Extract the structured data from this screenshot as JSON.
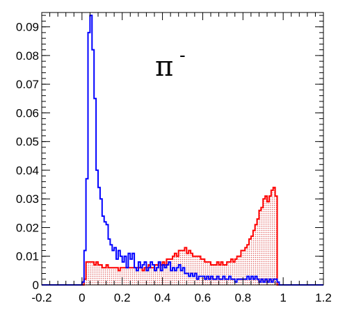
{
  "chart_data": {
    "type": "histogram",
    "title": "π",
    "title_superscript": "-",
    "xlabel": "",
    "ylabel": "",
    "xlim": [
      -0.2,
      1.2
    ],
    "ylim": [
      0,
      0.095
    ],
    "x_ticks": [
      -0.2,
      0,
      0.2,
      0.4,
      0.6,
      0.8,
      1,
      1.2
    ],
    "x_tick_labels": [
      "-0.2",
      "0",
      "0.2",
      "0.4",
      "0.6",
      "0.8",
      "1",
      "1.2"
    ],
    "y_ticks": [
      0,
      0.01,
      0.02,
      0.03,
      0.04,
      0.05,
      0.06,
      0.07,
      0.08,
      0.09
    ],
    "y_tick_labels": [
      "0",
      "0.01",
      "0.02",
      "0.03",
      "0.04",
      "0.05",
      "0.06",
      "0.07",
      "0.08",
      "0.09"
    ],
    "grid": false,
    "legend": "none",
    "bin_width": 0.01,
    "series": [
      {
        "color": "#0000ff",
        "fill": "none",
        "points": [
          [
            0.0,
            0.001
          ],
          [
            0.01,
            0.012
          ],
          [
            0.02,
            0.037
          ],
          [
            0.03,
            0.088
          ],
          [
            0.04,
            0.094
          ],
          [
            0.05,
            0.082
          ],
          [
            0.06,
            0.065
          ],
          [
            0.07,
            0.04
          ],
          [
            0.08,
            0.034
          ],
          [
            0.09,
            0.03
          ],
          [
            0.1,
            0.024
          ],
          [
            0.11,
            0.022
          ],
          [
            0.12,
            0.021
          ],
          [
            0.13,
            0.016
          ],
          [
            0.14,
            0.014
          ],
          [
            0.15,
            0.012
          ],
          [
            0.16,
            0.013
          ],
          [
            0.17,
            0.009
          ],
          [
            0.18,
            0.012
          ],
          [
            0.19,
            0.01
          ],
          [
            0.2,
            0.008
          ],
          [
            0.21,
            0.01
          ],
          [
            0.22,
            0.006
          ],
          [
            0.23,
            0.011
          ],
          [
            0.24,
            0.009
          ],
          [
            0.25,
            0.011
          ],
          [
            0.26,
            0.006
          ],
          [
            0.27,
            0.005
          ],
          [
            0.28,
            0.008
          ],
          [
            0.29,
            0.006
          ],
          [
            0.3,
            0.007
          ],
          [
            0.31,
            0.008
          ],
          [
            0.32,
            0.005
          ],
          [
            0.33,
            0.006
          ],
          [
            0.34,
            0.008
          ],
          [
            0.35,
            0.007
          ],
          [
            0.36,
            0.005
          ],
          [
            0.37,
            0.006
          ],
          [
            0.38,
            0.008
          ],
          [
            0.39,
            0.005
          ],
          [
            0.4,
            0.007
          ],
          [
            0.41,
            0.006
          ],
          [
            0.42,
            0.007
          ],
          [
            0.43,
            0.008
          ],
          [
            0.44,
            0.005
          ],
          [
            0.45,
            0.006
          ],
          [
            0.46,
            0.005
          ],
          [
            0.47,
            0.006
          ],
          [
            0.48,
            0.007
          ],
          [
            0.49,
            0.005
          ],
          [
            0.5,
            0.006
          ],
          [
            0.51,
            0.004
          ],
          [
            0.52,
            0.004
          ],
          [
            0.53,
            0.003
          ],
          [
            0.54,
            0.004
          ],
          [
            0.55,
            0.003
          ],
          [
            0.56,
            0.004
          ],
          [
            0.57,
            0.002
          ],
          [
            0.58,
            0.003
          ],
          [
            0.59,
            0.003
          ],
          [
            0.6,
            0.003
          ],
          [
            0.61,
            0.002
          ],
          [
            0.62,
            0.003
          ],
          [
            0.63,
            0.002
          ],
          [
            0.64,
            0.003
          ],
          [
            0.65,
            0.002
          ],
          [
            0.66,
            0.002
          ],
          [
            0.67,
            0.003
          ],
          [
            0.68,
            0.002
          ],
          [
            0.69,
            0.002
          ],
          [
            0.7,
            0.003
          ],
          [
            0.71,
            0.002
          ],
          [
            0.72,
            0.002
          ],
          [
            0.73,
            0.003
          ],
          [
            0.74,
            0.002
          ],
          [
            0.75,
            0.002
          ],
          [
            0.76,
            0.001
          ],
          [
            0.77,
            0.002
          ],
          [
            0.78,
            0.002
          ],
          [
            0.79,
            0.002
          ],
          [
            0.8,
            0.002
          ],
          [
            0.81,
            0.002
          ],
          [
            0.82,
            0.003
          ],
          [
            0.83,
            0.002
          ],
          [
            0.84,
            0.003
          ],
          [
            0.85,
            0.002
          ],
          [
            0.86,
            0.003
          ],
          [
            0.87,
            0.002
          ],
          [
            0.88,
            0.001
          ],
          [
            0.89,
            0.002
          ],
          [
            0.9,
            0.001
          ],
          [
            0.91,
            0.002
          ],
          [
            0.92,
            0.001
          ],
          [
            0.93,
            0.002
          ],
          [
            0.94,
            0.001
          ],
          [
            0.95,
            0.002
          ],
          [
            0.96,
            0.002
          ],
          [
            0.97,
            0.001
          ],
          [
            0.98,
            0.0
          ]
        ]
      },
      {
        "color": "#ff0000",
        "fill": "#f8d8d8",
        "points": [
          [
            0.0,
            0.0
          ],
          [
            0.01,
            0.002
          ],
          [
            0.02,
            0.008
          ],
          [
            0.03,
            0.008
          ],
          [
            0.04,
            0.008
          ],
          [
            0.05,
            0.008
          ],
          [
            0.06,
            0.007
          ],
          [
            0.07,
            0.008
          ],
          [
            0.08,
            0.007
          ],
          [
            0.09,
            0.007
          ],
          [
            0.1,
            0.006
          ],
          [
            0.11,
            0.006
          ],
          [
            0.12,
            0.007
          ],
          [
            0.13,
            0.006
          ],
          [
            0.14,
            0.006
          ],
          [
            0.15,
            0.006
          ],
          [
            0.16,
            0.006
          ],
          [
            0.17,
            0.006
          ],
          [
            0.18,
            0.005
          ],
          [
            0.19,
            0.006
          ],
          [
            0.2,
            0.006
          ],
          [
            0.21,
            0.006
          ],
          [
            0.22,
            0.006
          ],
          [
            0.23,
            0.006
          ],
          [
            0.24,
            0.006
          ],
          [
            0.25,
            0.006
          ],
          [
            0.26,
            0.006
          ],
          [
            0.27,
            0.006
          ],
          [
            0.28,
            0.006
          ],
          [
            0.29,
            0.006
          ],
          [
            0.3,
            0.005
          ],
          [
            0.31,
            0.006
          ],
          [
            0.32,
            0.006
          ],
          [
            0.33,
            0.007
          ],
          [
            0.34,
            0.006
          ],
          [
            0.35,
            0.006
          ],
          [
            0.36,
            0.007
          ],
          [
            0.37,
            0.007
          ],
          [
            0.38,
            0.008
          ],
          [
            0.39,
            0.007
          ],
          [
            0.4,
            0.008
          ],
          [
            0.41,
            0.007
          ],
          [
            0.42,
            0.009
          ],
          [
            0.43,
            0.009
          ],
          [
            0.44,
            0.009
          ],
          [
            0.45,
            0.01
          ],
          [
            0.46,
            0.011
          ],
          [
            0.47,
            0.01
          ],
          [
            0.48,
            0.012
          ],
          [
            0.49,
            0.012
          ],
          [
            0.5,
            0.012
          ],
          [
            0.51,
            0.013
          ],
          [
            0.52,
            0.011
          ],
          [
            0.53,
            0.012
          ],
          [
            0.54,
            0.011
          ],
          [
            0.55,
            0.01
          ],
          [
            0.56,
            0.01
          ],
          [
            0.57,
            0.01
          ],
          [
            0.58,
            0.01
          ],
          [
            0.59,
            0.009
          ],
          [
            0.6,
            0.009
          ],
          [
            0.61,
            0.008
          ],
          [
            0.62,
            0.008
          ],
          [
            0.63,
            0.008
          ],
          [
            0.64,
            0.007
          ],
          [
            0.65,
            0.007
          ],
          [
            0.66,
            0.007
          ],
          [
            0.67,
            0.008
          ],
          [
            0.68,
            0.007
          ],
          [
            0.69,
            0.008
          ],
          [
            0.7,
            0.007
          ],
          [
            0.71,
            0.007
          ],
          [
            0.72,
            0.008
          ],
          [
            0.73,
            0.008
          ],
          [
            0.74,
            0.009
          ],
          [
            0.75,
            0.008
          ],
          [
            0.76,
            0.009
          ],
          [
            0.77,
            0.01
          ],
          [
            0.78,
            0.01
          ],
          [
            0.79,
            0.012
          ],
          [
            0.8,
            0.012
          ],
          [
            0.81,
            0.013
          ],
          [
            0.82,
            0.014
          ],
          [
            0.83,
            0.016
          ],
          [
            0.84,
            0.017
          ],
          [
            0.85,
            0.019
          ],
          [
            0.86,
            0.021
          ],
          [
            0.87,
            0.023
          ],
          [
            0.88,
            0.026
          ],
          [
            0.89,
            0.027
          ],
          [
            0.9,
            0.03
          ],
          [
            0.91,
            0.031
          ],
          [
            0.92,
            0.029
          ],
          [
            0.93,
            0.031
          ],
          [
            0.94,
            0.033
          ],
          [
            0.95,
            0.034
          ],
          [
            0.96,
            0.031
          ],
          [
            0.97,
            0.0
          ]
        ]
      }
    ]
  }
}
